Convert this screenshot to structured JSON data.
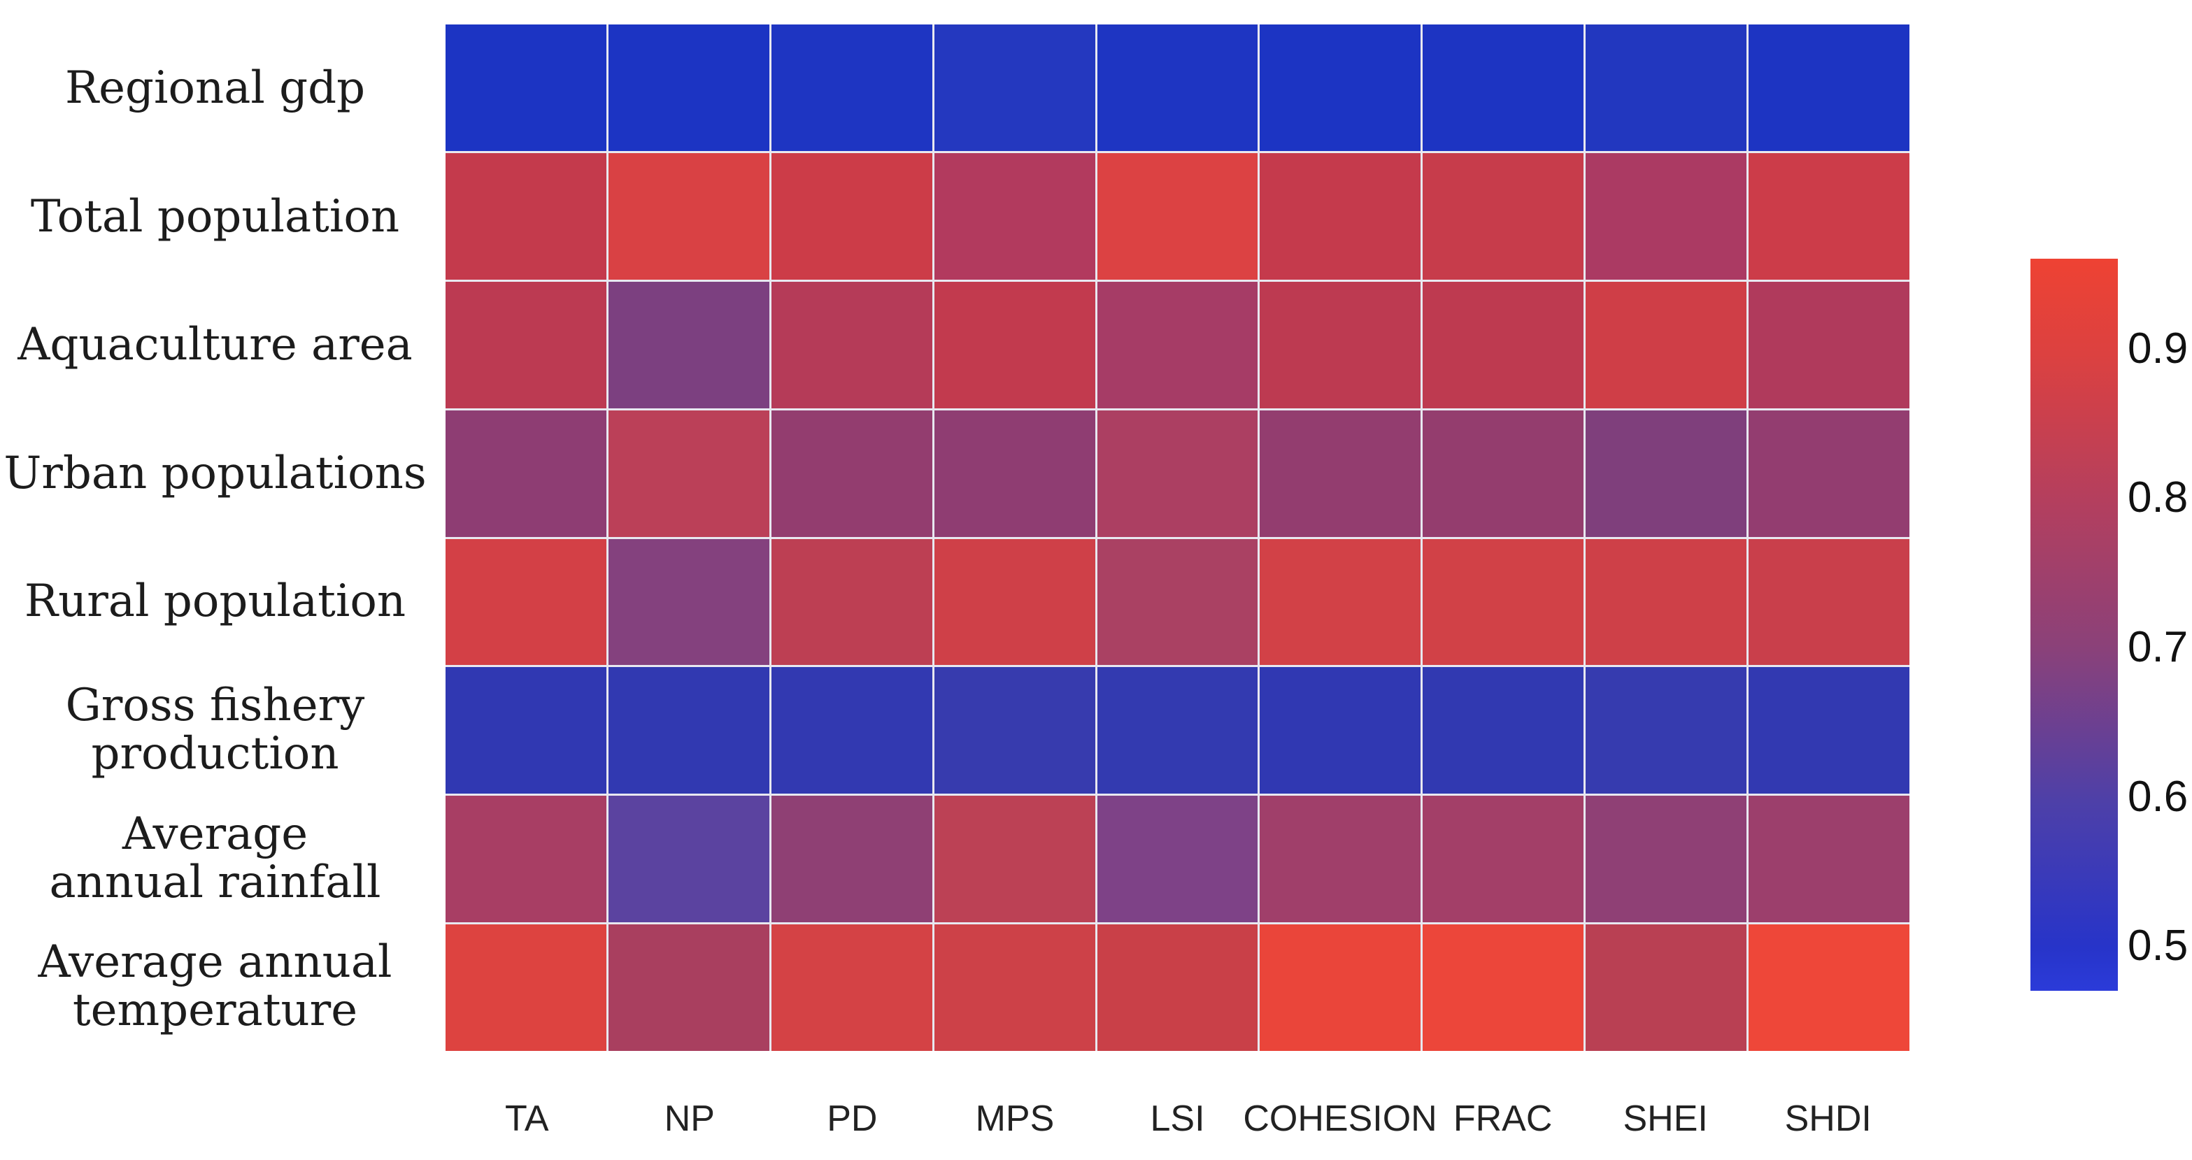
{
  "chart_data": {
    "type": "heatmap",
    "title": "",
    "xlabel": "",
    "ylabel": "",
    "rows": [
      "Regional gdp",
      "Total population",
      "Aquaculture area",
      "Urban populations",
      "Rural population",
      "Gross fishery production",
      "Average annual rainfall",
      "Average annual temperature"
    ],
    "row_display": [
      [
        "Regional gdp"
      ],
      [
        "Total population"
      ],
      [
        "Aquaculture area"
      ],
      [
        "Urban populations"
      ],
      [
        "Rural population"
      ],
      [
        "Gross fishery",
        "production"
      ],
      [
        "Average",
        "annual rainfall"
      ],
      [
        "Average annual",
        "temperature"
      ]
    ],
    "columns": [
      "TA",
      "NP",
      "PD",
      "MPS",
      "LSI",
      "COHESION",
      "FRAC",
      "SHEI",
      "SHDI"
    ],
    "values": [
      [
        0.49,
        0.49,
        0.49,
        0.5,
        0.49,
        0.49,
        0.49,
        0.5,
        0.49
      ],
      [
        0.86,
        0.9,
        0.88,
        0.81,
        0.91,
        0.86,
        0.87,
        0.79,
        0.88
      ],
      [
        0.84,
        0.68,
        0.82,
        0.85,
        0.78,
        0.84,
        0.84,
        0.88,
        0.81
      ],
      [
        0.71,
        0.83,
        0.72,
        0.71,
        0.79,
        0.72,
        0.73,
        0.68,
        0.72
      ],
      [
        0.89,
        0.69,
        0.84,
        0.88,
        0.79,
        0.89,
        0.89,
        0.88,
        0.87
      ],
      [
        0.53,
        0.53,
        0.53,
        0.54,
        0.53,
        0.53,
        0.53,
        0.54,
        0.53
      ],
      [
        0.78,
        0.62,
        0.71,
        0.83,
        0.67,
        0.76,
        0.77,
        0.71,
        0.75
      ],
      [
        0.91,
        0.78,
        0.89,
        0.88,
        0.87,
        0.94,
        0.94,
        0.83,
        0.95
      ]
    ],
    "cell_colors": [
      [
        "#1c34c3",
        "#1c34c3",
        "#1e35c2",
        "#2438bf",
        "#1e35c2",
        "#1c34c3",
        "#1d34c2",
        "#2237bf",
        "#1d34c2"
      ],
      [
        "#c43a4c",
        "#d94144",
        "#cc3c48",
        "#b23a5e",
        "#dc4243",
        "#c53a4c",
        "#c73c4b",
        "#ab3a63",
        "#cc3c49"
      ],
      [
        "#bc3a52",
        "#7c4080",
        "#b53b58",
        "#c23a4e",
        "#a63c66",
        "#bd3a51",
        "#be3a50",
        "#cf3e47",
        "#b03a5c"
      ],
      [
        "#8e3d73",
        "#bb4058",
        "#933d6f",
        "#8f3d72",
        "#ac3f62",
        "#933d6f",
        "#943d6e",
        "#7f3f7c",
        "#933d70"
      ],
      [
        "#d34046",
        "#84417e",
        "#bd3f53",
        "#cf4048",
        "#aa4163",
        "#d24147",
        "#d14147",
        "#ce4048",
        "#c93f4b"
      ],
      [
        "#3038b2",
        "#3139b1",
        "#3239b1",
        "#373bae",
        "#333ab0",
        "#3038b2",
        "#3139b1",
        "#363baf",
        "#3239b1"
      ],
      [
        "#a83e64",
        "#5b43a0",
        "#8f4074",
        "#bc4155",
        "#7e4287",
        "#a03f6a",
        "#a33f68",
        "#8f4075",
        "#9c3f6c"
      ],
      [
        "#dd4340",
        "#a93f5f",
        "#d44245",
        "#cd4148",
        "#c94048",
        "#ea453a",
        "#ec463a",
        "#b94053",
        "#ee4739"
      ]
    ],
    "legend_position": "right",
    "grid_line_color": "#e8e8f0",
    "colorbar": {
      "vmin": 0.47,
      "vmax": 0.96,
      "tick_labels": [
        "0.9",
        "0.8",
        "0.7",
        "0.6",
        "0.5"
      ],
      "tick_values": [
        0.9,
        0.8,
        0.7,
        0.6,
        0.5
      ],
      "gradient_stops": [
        {
          "pos": 0.0,
          "color": "#ee4233"
        },
        {
          "pos": 0.13,
          "color": "#dc4140"
        },
        {
          "pos": 0.33,
          "color": "#b43f5e"
        },
        {
          "pos": 0.53,
          "color": "#8b4179"
        },
        {
          "pos": 0.74,
          "color": "#4e40a8"
        },
        {
          "pos": 0.94,
          "color": "#2734c9"
        },
        {
          "pos": 1.0,
          "color": "#2b3bd9"
        }
      ]
    }
  }
}
